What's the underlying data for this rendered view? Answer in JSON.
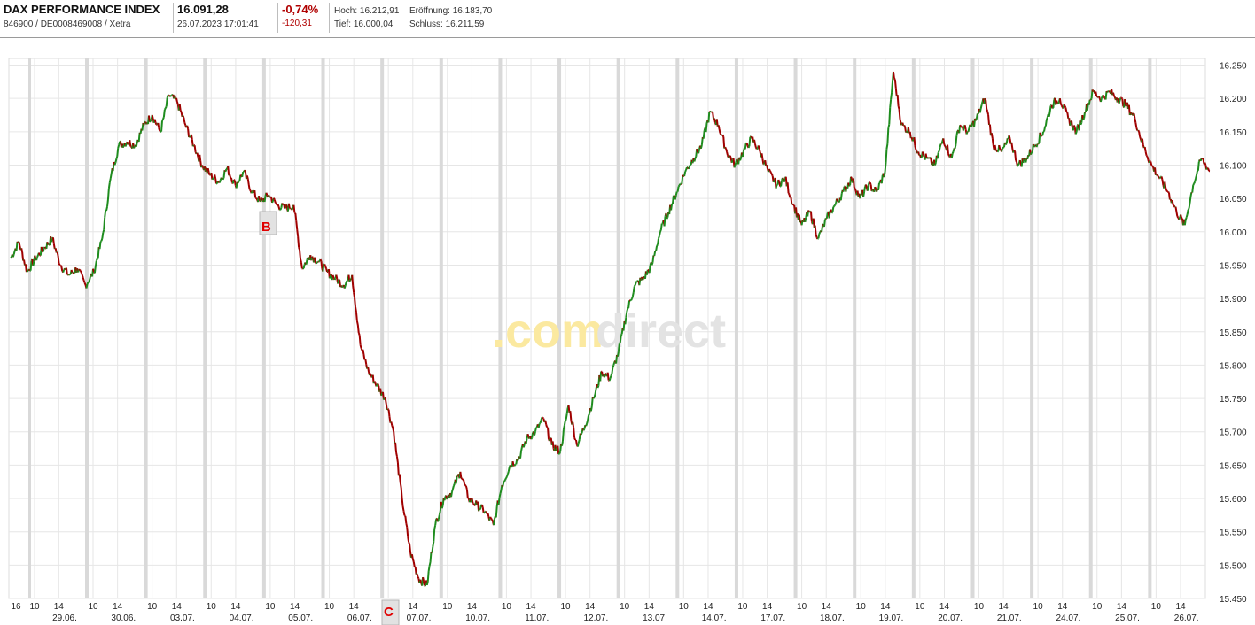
{
  "header": {
    "name": "DAX PERFORMANCE INDEX",
    "subline": "846900 / DE0008469008 / Xetra",
    "price": "16.091,28",
    "datetime": "26.07.2023 17:01:41",
    "change_pct": "-0,74%",
    "change_abs": "-120,31",
    "hoch": "Hoch: 16.212,91",
    "eroeffnung": "Eröffnung: 16.183,70",
    "tief": "Tief: 16.000,04",
    "schluss": "Schluss: 16.211,59"
  },
  "watermark": {
    "part1": ".com",
    "part2": "direct",
    "color1": "#fbe9a0",
    "color2": "#e3e3e3"
  },
  "colors": {
    "up": "#1e8c1e",
    "down": "#a00000",
    "grid": "#e6e6e6",
    "session_bar": "#d9d9d9",
    "accent_red": "#e00000"
  },
  "chart_data": {
    "type": "line",
    "title": "",
    "ylabel": "",
    "xlabel": "",
    "ylim": [
      15450,
      16260
    ],
    "yticks": [
      "16.250",
      "16.200",
      "16.150",
      "16.100",
      "16.050",
      "16.000",
      "15.950",
      "15.900",
      "15.850",
      "15.800",
      "15.750",
      "15.700",
      "15.650",
      "15.600",
      "15.550",
      "15.500",
      "15.450"
    ],
    "ytick_values": [
      16250,
      16200,
      16150,
      16100,
      16050,
      16000,
      15950,
      15900,
      15850,
      15800,
      15750,
      15700,
      15650,
      15600,
      15550,
      15500,
      15450
    ],
    "days": [
      "29.06.",
      "30.06.",
      "03.07.",
      "04.07.",
      "05.07.",
      "06.07.",
      "07.07.",
      "10.07.",
      "11.07.",
      "12.07.",
      "13.07.",
      "14.07.",
      "17.07.",
      "18.07.",
      "19.07.",
      "20.07.",
      "21.07.",
      "24.07.",
      "25.07.",
      "26.07."
    ],
    "hour_labels": [
      "16",
      "10",
      "14",
      "10",
      "14",
      "10",
      "14",
      "10",
      "14",
      "10",
      "14",
      "10",
      "14",
      "10",
      "14",
      "10",
      "14",
      "10",
      "14",
      "10",
      "14",
      "10",
      "14",
      "10",
      "14",
      "10",
      "14",
      "10",
      "14",
      "10",
      "14",
      "10",
      "14",
      "10",
      "14",
      "10",
      "14",
      "10",
      "14",
      "10",
      "14"
    ],
    "series": [
      {
        "values": [
          15960,
          15985,
          15940,
          15960,
          15975,
          15990,
          15950,
          15935,
          15945,
          15920,
          15940,
          15990,
          16080,
          16130,
          16135,
          16130,
          16160,
          16175,
          16150,
          16205,
          16195,
          16160,
          16130,
          16100,
          16085,
          16075,
          16095,
          16070,
          16090,
          16060,
          16045,
          16055,
          16040,
          16035,
          16040,
          15945,
          15965,
          15955,
          15940,
          15930,
          15920,
          15935,
          15830,
          15790,
          15770,
          15750,
          15700,
          15600,
          15520,
          15480,
          15470,
          15560,
          15600,
          15610,
          15640,
          15600,
          15590,
          15580,
          15560,
          15620,
          15650,
          15660,
          15690,
          15700,
          15720,
          15680,
          15670,
          15740,
          15680,
          15710,
          15750,
          15790,
          15780,
          15820,
          15880,
          15920,
          15930,
          15950,
          16000,
          16030,
          16060,
          16090,
          16110,
          16130,
          16180,
          16160,
          16120,
          16100,
          16120,
          16140,
          16120,
          16090,
          16070,
          16080,
          16040,
          16010,
          16030,
          15990,
          16020,
          16040,
          16060,
          16080,
          16050,
          16070,
          16060,
          16090,
          16240,
          16160,
          16150,
          16120,
          16110,
          16100,
          16140,
          16110,
          16160,
          16150,
          16170,
          16200,
          16130,
          16120,
          16140,
          16100,
          16110,
          16130,
          16150,
          16190,
          16200,
          16170,
          16150,
          16180,
          16210,
          16200,
          16210,
          16200,
          16190,
          16170,
          16130,
          16100,
          16080,
          16060,
          16030,
          16010,
          16070,
          16110,
          16091
        ]
      }
    ]
  }
}
